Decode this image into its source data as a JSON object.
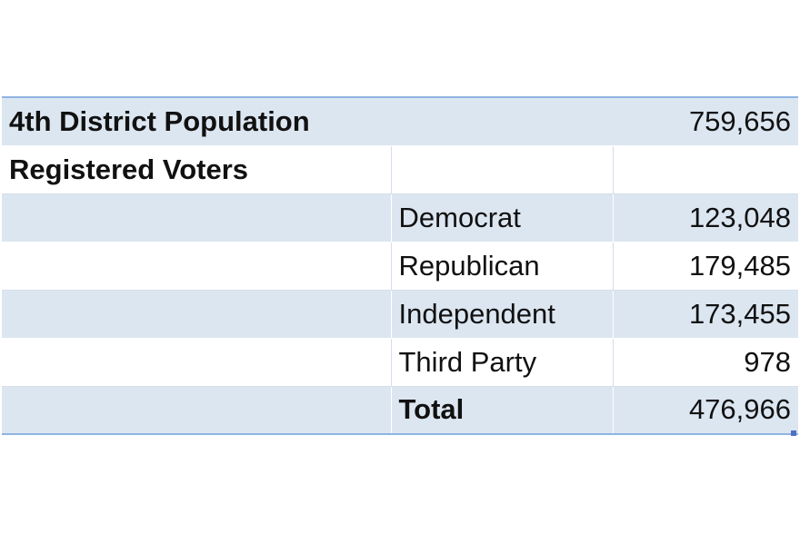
{
  "table": {
    "population": {
      "label": "4th District Population",
      "value": "759,656"
    },
    "registered_voters": {
      "label": "Registered Voters"
    },
    "parties": [
      {
        "name": "Democrat",
        "value": "123,048"
      },
      {
        "name": "Republican",
        "value": "179,485"
      },
      {
        "name": "Independent",
        "value": "173,455"
      },
      {
        "name": "Third Party",
        "value": "978"
      }
    ],
    "total": {
      "label": "Total",
      "value": "476,966"
    }
  },
  "colors": {
    "band": "#dce6f1",
    "border": "#8fb4e3",
    "grid": "#d6deea"
  }
}
